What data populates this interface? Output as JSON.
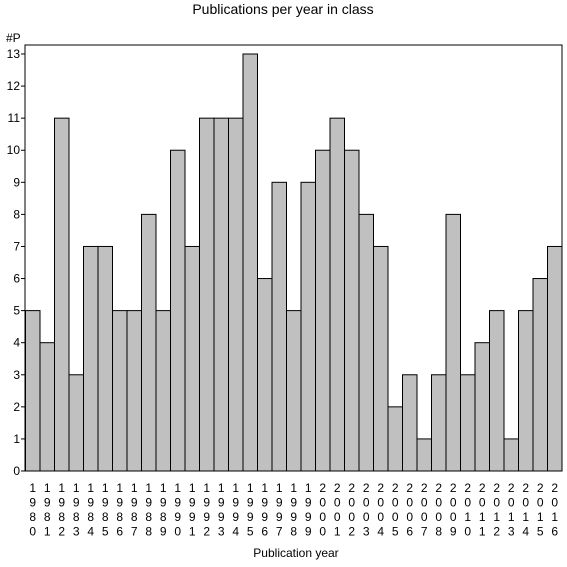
{
  "chart_data": {
    "type": "bar",
    "title": "Publications per year in class",
    "ylabel": "#P",
    "xlabel": "Publication year",
    "ylim": [
      0,
      13
    ],
    "yticks": [
      0,
      1,
      2,
      3,
      4,
      5,
      6,
      7,
      8,
      9,
      10,
      11,
      12,
      13
    ],
    "categories": [
      "1980",
      "1981",
      "1982",
      "1983",
      "1984",
      "1985",
      "1986",
      "1987",
      "1988",
      "1989",
      "1990",
      "1991",
      "1992",
      "1993",
      "1994",
      "1995",
      "1996",
      "1997",
      "1998",
      "1999",
      "2000",
      "2001",
      "2002",
      "2003",
      "2004",
      "2005",
      "2006",
      "2007",
      "2008",
      "2009",
      "2010",
      "2011",
      "2012",
      "2013",
      "2014",
      "2015",
      "2016"
    ],
    "values": [
      5,
      4,
      11,
      3,
      7,
      7,
      5,
      5,
      8,
      5,
      10,
      7,
      11,
      11,
      11,
      13,
      6,
      9,
      5,
      9,
      10,
      11,
      10,
      8,
      7,
      2,
      3,
      1,
      3,
      8,
      3,
      4,
      5,
      1,
      5,
      6,
      7
    ],
    "bar_color": "#c0c0c0",
    "grid": false,
    "legend": "none"
  }
}
